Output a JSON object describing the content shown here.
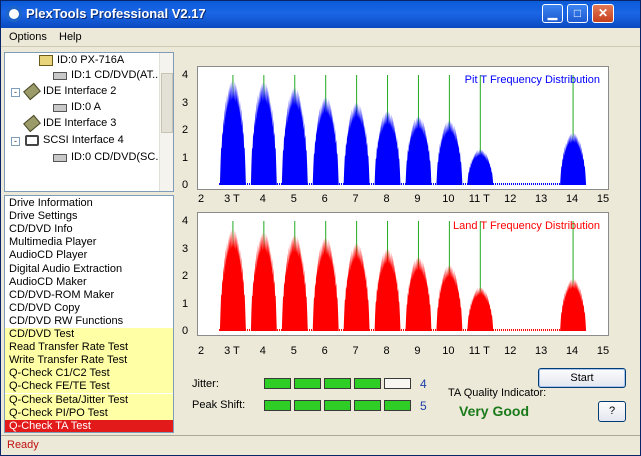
{
  "window": {
    "title": "PlexTools Professional V2.17",
    "controls": {
      "minimize": "▁",
      "maximize": "□",
      "close": "✕"
    }
  },
  "menu": {
    "options": "Options",
    "help": "Help"
  },
  "tree": {
    "nodes": [
      {
        "label": "ID:0  PX-716A",
        "icon": "drive-selected-icon"
      },
      {
        "label": "ID:1  CD/DVD(AT...",
        "icon": "drive-icon"
      },
      {
        "label": "IDE Interface 2",
        "icon": "ide-interface-icon"
      },
      {
        "label": "ID:0  A",
        "icon": "drive-icon"
      },
      {
        "label": "IDE Interface 3",
        "icon": "ide-interface-icon"
      },
      {
        "label": "SCSI Interface 4",
        "icon": "scsi-interface-icon"
      },
      {
        "label": "ID:0  CD/DVD(SC...",
        "icon": "drive-icon"
      }
    ]
  },
  "functions": {
    "items": [
      {
        "label": "Drive Information",
        "state": "normal"
      },
      {
        "label": "Drive Settings",
        "state": "normal"
      },
      {
        "label": "CD/DVD Info",
        "state": "normal"
      },
      {
        "label": "Multimedia Player",
        "state": "normal"
      },
      {
        "label": "AudioCD Player",
        "state": "normal"
      },
      {
        "label": "Digital Audio Extraction",
        "state": "normal"
      },
      {
        "label": "AudioCD Maker",
        "state": "normal"
      },
      {
        "label": "CD/DVD-ROM Maker",
        "state": "normal"
      },
      {
        "label": "CD/DVD Copy",
        "state": "normal"
      },
      {
        "label": "CD/DVD RW Functions",
        "state": "normal"
      },
      {
        "label": "CD/DVD Test",
        "state": "highlight"
      },
      {
        "label": "Read Transfer Rate Test",
        "state": "highlight"
      },
      {
        "label": "Write Transfer Rate Test",
        "state": "highlight"
      },
      {
        "label": "Q-Check C1/C2 Test",
        "state": "highlight"
      },
      {
        "label": "Q-Check FE/TE Test",
        "state": "highlight"
      },
      {
        "label": "Q-Check Beta/Jitter Test",
        "state": "highlight"
      },
      {
        "label": "Q-Check PI/PO Test",
        "state": "highlight"
      },
      {
        "label": "Q-Check TA Test",
        "state": "selected"
      }
    ]
  },
  "chart_data": [
    {
      "type": "area",
      "title": "Pit T Frequency Distribution",
      "color": "#0000ff",
      "ylim": [
        0,
        4
      ],
      "xlim": [
        2,
        15
      ],
      "x_ticks": [
        "2",
        "3 T",
        "4",
        "5",
        "6",
        "7",
        "8",
        "9",
        "10",
        "11 T",
        "12",
        "13",
        "14",
        "15"
      ],
      "y_ticks": [
        "0",
        "1",
        "2",
        "3",
        "4"
      ],
      "reference_lines": [
        3,
        4,
        5,
        6,
        7,
        8,
        9,
        10,
        11,
        14
      ],
      "peaks": [
        {
          "t": 3,
          "peak": 3.8
        },
        {
          "t": 4,
          "peak": 3.75
        },
        {
          "t": 5,
          "peak": 3.55
        },
        {
          "t": 6,
          "peak": 3.2
        },
        {
          "t": 7,
          "peak": 3.0
        },
        {
          "t": 8,
          "peak": 2.7
        },
        {
          "t": 9,
          "peak": 2.5
        },
        {
          "t": 10,
          "peak": 2.35
        },
        {
          "t": 11,
          "peak": 1.3
        },
        {
          "t": 14,
          "peak": 1.9
        }
      ]
    },
    {
      "type": "area",
      "title": "Land T Frequency Distribution",
      "color": "#ff0000",
      "ylim": [
        0,
        4
      ],
      "xlim": [
        2,
        15
      ],
      "x_ticks": [
        "2",
        "3 T",
        "4",
        "5",
        "6",
        "7",
        "8",
        "9",
        "10",
        "11 T",
        "12",
        "13",
        "14",
        "15"
      ],
      "y_ticks": [
        "0",
        "1",
        "2",
        "3",
        "4"
      ],
      "reference_lines": [
        3,
        4,
        5,
        6,
        7,
        8,
        9,
        10,
        11,
        14
      ],
      "peaks": [
        {
          "t": 3,
          "peak": 3.7
        },
        {
          "t": 4,
          "peak": 3.6
        },
        {
          "t": 5,
          "peak": 3.5
        },
        {
          "t": 6,
          "peak": 3.4
        },
        {
          "t": 7,
          "peak": 3.2
        },
        {
          "t": 8,
          "peak": 3.0
        },
        {
          "t": 9,
          "peak": 2.7
        },
        {
          "t": 10,
          "peak": 2.4
        },
        {
          "t": 11,
          "peak": 1.6
        },
        {
          "t": 14,
          "peak": 1.9
        }
      ]
    }
  ],
  "quality": {
    "jitter_label": "Jitter:",
    "jitter_value": "4",
    "jitter_segments": 5,
    "jitter_level": 4,
    "peakshift_label": "Peak Shift:",
    "peakshift_value": "5",
    "peakshift_segments": 5,
    "peakshift_level": 5,
    "ta_label": "TA Quality Indicator:",
    "ta_value": "Very Good",
    "start_label": "Start",
    "help_label": "?"
  },
  "status": {
    "text": "Ready"
  }
}
